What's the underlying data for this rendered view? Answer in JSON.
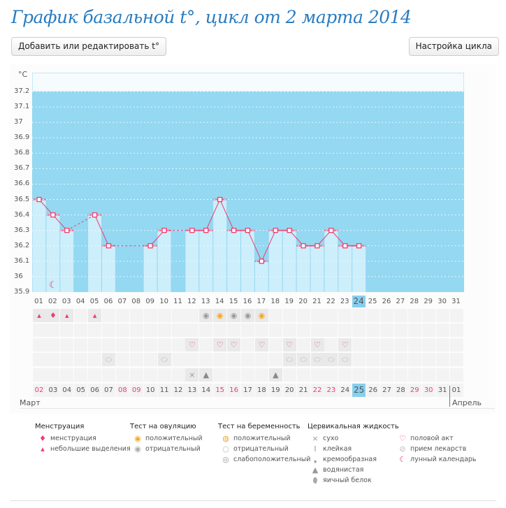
{
  "title": "График базальной t°, цикл от 2 марта 2014",
  "buttons": {
    "edit": "Добавить или редактировать t°",
    "settings": "Настройка цикла"
  },
  "colors": {
    "chart_bg": "#94d8f2",
    "bar": "#cdeefb",
    "line": "#ee3c6e",
    "accent_day": "#86d0ee",
    "weekend": "#ee3c6e"
  },
  "chart_data": {
    "type": "bar",
    "ylabel": "°C",
    "ylim": [
      35.9,
      37.2
    ],
    "yticks": [
      "37.2",
      "37.1",
      "37",
      "36.9",
      "36.8",
      "36.7",
      "36.6",
      "36.5",
      "36.4",
      "36.3",
      "36.2",
      "36.1",
      "36",
      "35.9"
    ],
    "categories": [
      "01",
      "02",
      "03",
      "04",
      "05",
      "06",
      "07",
      "08",
      "09",
      "10",
      "11",
      "12",
      "13",
      "14",
      "15",
      "16",
      "17",
      "18",
      "19",
      "20",
      "21",
      "22",
      "23",
      "24",
      "25",
      "26",
      "27",
      "28",
      "29",
      "30",
      "31"
    ],
    "values": [
      36.5,
      36.4,
      36.3,
      null,
      36.4,
      36.2,
      null,
      null,
      36.2,
      36.3,
      null,
      36.3,
      36.3,
      36.5,
      36.3,
      36.3,
      36.1,
      36.3,
      36.3,
      36.2,
      36.2,
      36.3,
      36.2,
      36.2,
      null,
      null,
      null,
      null,
      null,
      null,
      null
    ],
    "current_day": "24",
    "grid": true
  },
  "dates": {
    "labels": [
      "02",
      "03",
      "04",
      "05",
      "06",
      "07",
      "08",
      "09",
      "10",
      "11",
      "12",
      "13",
      "14",
      "15",
      "16",
      "17",
      "18",
      "19",
      "20",
      "21",
      "22",
      "23",
      "24",
      "25",
      "26",
      "27",
      "28",
      "29",
      "30",
      "31",
      "01"
    ],
    "weekend": [
      true,
      false,
      false,
      false,
      false,
      false,
      true,
      true,
      false,
      false,
      false,
      false,
      false,
      true,
      true,
      false,
      false,
      false,
      false,
      false,
      true,
      true,
      false,
      false,
      false,
      false,
      false,
      true,
      true,
      false,
      false
    ],
    "month1": "Март",
    "month2": "Апрель",
    "today": "25"
  },
  "rows": {
    "menstruation": {
      "1": "small",
      "2": "menstruation",
      "3": "small",
      "5": "small"
    },
    "ovulation": {
      "13": "negative",
      "14": "positive",
      "15": "negative",
      "16": "negative",
      "17": "positive"
    },
    "sex": [
      12,
      14,
      15,
      17,
      19,
      21,
      23
    ],
    "medicine": [
      6,
      10,
      19,
      20,
      21,
      22,
      23
    ],
    "cervical": {
      "12": "dry",
      "13": "watery",
      "18": "watery"
    },
    "moon": 2
  },
  "legend": [
    {
      "title": "Менструация",
      "items": [
        {
          "icon": "menstruation-icon",
          "label": "менструация"
        },
        {
          "icon": "spotting-icon",
          "label": "небольшие выделения"
        }
      ]
    },
    {
      "title": "Тест на овуляцию",
      "items": [
        {
          "icon": "ovulation-positive-icon",
          "label": "положительный"
        },
        {
          "icon": "ovulation-negative-icon",
          "label": "отрицательный"
        }
      ]
    },
    {
      "title": "Тест на беременность",
      "items": [
        {
          "icon": "pregnancy-positive-icon",
          "label": "положительный"
        },
        {
          "icon": "pregnancy-negative-icon",
          "label": "отрицательный"
        },
        {
          "icon": "pregnancy-weak-icon",
          "label": "слабоположительный"
        }
      ]
    },
    {
      "title": "Цервикальная жидкость",
      "items": [
        {
          "icon": "dry-icon",
          "label": "сухо"
        },
        {
          "icon": "sticky-icon",
          "label": "клейкая"
        },
        {
          "icon": "creamy-icon",
          "label": "кремообразная"
        },
        {
          "icon": "watery-icon",
          "label": "водянистая"
        },
        {
          "icon": "egg-white-icon",
          "label": "яичный белок"
        }
      ]
    },
    {
      "title": "",
      "items": [
        {
          "icon": "heart-icon",
          "label": "половой акт"
        },
        {
          "icon": "pill-icon",
          "label": "прием лекарств"
        },
        {
          "icon": "moon-icon",
          "label": "лунный календарь"
        }
      ]
    }
  ]
}
